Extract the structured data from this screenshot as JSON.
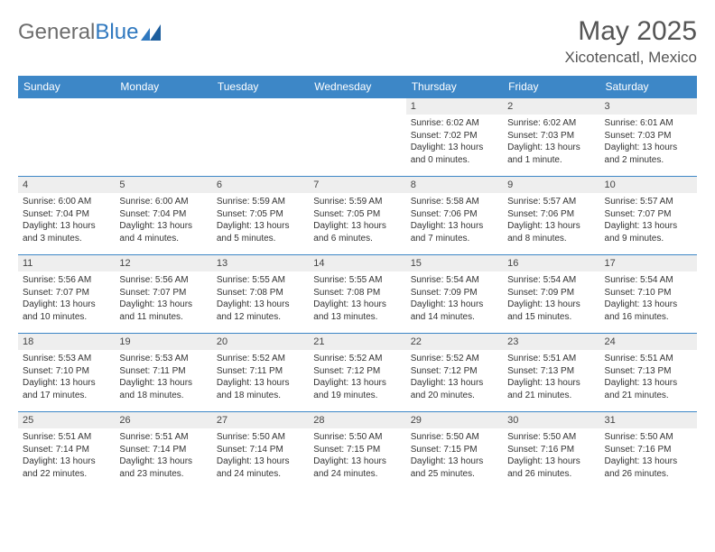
{
  "logo": {
    "word1": "General",
    "word2": "Blue"
  },
  "title": "May 2025",
  "location": "Xicotencatl, Mexico",
  "colors": {
    "header_bg": "#3d87c7",
    "header_text": "#ffffff",
    "border": "#3d87c7",
    "daynum_bg": "#eeeeee",
    "body_text": "#333333",
    "title_text": "#555555",
    "logo_gray": "#6d6d6d",
    "logo_blue": "#2f78bf"
  },
  "day_headers": [
    "Sunday",
    "Monday",
    "Tuesday",
    "Wednesday",
    "Thursday",
    "Friday",
    "Saturday"
  ],
  "weeks": [
    [
      {
        "n": "",
        "empty": true
      },
      {
        "n": "",
        "empty": true
      },
      {
        "n": "",
        "empty": true
      },
      {
        "n": "",
        "empty": true
      },
      {
        "n": "1",
        "sunrise": "Sunrise: 6:02 AM",
        "sunset": "Sunset: 7:02 PM",
        "daylight": "Daylight: 13 hours and 0 minutes."
      },
      {
        "n": "2",
        "sunrise": "Sunrise: 6:02 AM",
        "sunset": "Sunset: 7:03 PM",
        "daylight": "Daylight: 13 hours and 1 minute."
      },
      {
        "n": "3",
        "sunrise": "Sunrise: 6:01 AM",
        "sunset": "Sunset: 7:03 PM",
        "daylight": "Daylight: 13 hours and 2 minutes."
      }
    ],
    [
      {
        "n": "4",
        "sunrise": "Sunrise: 6:00 AM",
        "sunset": "Sunset: 7:04 PM",
        "daylight": "Daylight: 13 hours and 3 minutes."
      },
      {
        "n": "5",
        "sunrise": "Sunrise: 6:00 AM",
        "sunset": "Sunset: 7:04 PM",
        "daylight": "Daylight: 13 hours and 4 minutes."
      },
      {
        "n": "6",
        "sunrise": "Sunrise: 5:59 AM",
        "sunset": "Sunset: 7:05 PM",
        "daylight": "Daylight: 13 hours and 5 minutes."
      },
      {
        "n": "7",
        "sunrise": "Sunrise: 5:59 AM",
        "sunset": "Sunset: 7:05 PM",
        "daylight": "Daylight: 13 hours and 6 minutes."
      },
      {
        "n": "8",
        "sunrise": "Sunrise: 5:58 AM",
        "sunset": "Sunset: 7:06 PM",
        "daylight": "Daylight: 13 hours and 7 minutes."
      },
      {
        "n": "9",
        "sunrise": "Sunrise: 5:57 AM",
        "sunset": "Sunset: 7:06 PM",
        "daylight": "Daylight: 13 hours and 8 minutes."
      },
      {
        "n": "10",
        "sunrise": "Sunrise: 5:57 AM",
        "sunset": "Sunset: 7:07 PM",
        "daylight": "Daylight: 13 hours and 9 minutes."
      }
    ],
    [
      {
        "n": "11",
        "sunrise": "Sunrise: 5:56 AM",
        "sunset": "Sunset: 7:07 PM",
        "daylight": "Daylight: 13 hours and 10 minutes."
      },
      {
        "n": "12",
        "sunrise": "Sunrise: 5:56 AM",
        "sunset": "Sunset: 7:07 PM",
        "daylight": "Daylight: 13 hours and 11 minutes."
      },
      {
        "n": "13",
        "sunrise": "Sunrise: 5:55 AM",
        "sunset": "Sunset: 7:08 PM",
        "daylight": "Daylight: 13 hours and 12 minutes."
      },
      {
        "n": "14",
        "sunrise": "Sunrise: 5:55 AM",
        "sunset": "Sunset: 7:08 PM",
        "daylight": "Daylight: 13 hours and 13 minutes."
      },
      {
        "n": "15",
        "sunrise": "Sunrise: 5:54 AM",
        "sunset": "Sunset: 7:09 PM",
        "daylight": "Daylight: 13 hours and 14 minutes."
      },
      {
        "n": "16",
        "sunrise": "Sunrise: 5:54 AM",
        "sunset": "Sunset: 7:09 PM",
        "daylight": "Daylight: 13 hours and 15 minutes."
      },
      {
        "n": "17",
        "sunrise": "Sunrise: 5:54 AM",
        "sunset": "Sunset: 7:10 PM",
        "daylight": "Daylight: 13 hours and 16 minutes."
      }
    ],
    [
      {
        "n": "18",
        "sunrise": "Sunrise: 5:53 AM",
        "sunset": "Sunset: 7:10 PM",
        "daylight": "Daylight: 13 hours and 17 minutes."
      },
      {
        "n": "19",
        "sunrise": "Sunrise: 5:53 AM",
        "sunset": "Sunset: 7:11 PM",
        "daylight": "Daylight: 13 hours and 18 minutes."
      },
      {
        "n": "20",
        "sunrise": "Sunrise: 5:52 AM",
        "sunset": "Sunset: 7:11 PM",
        "daylight": "Daylight: 13 hours and 18 minutes."
      },
      {
        "n": "21",
        "sunrise": "Sunrise: 5:52 AM",
        "sunset": "Sunset: 7:12 PM",
        "daylight": "Daylight: 13 hours and 19 minutes."
      },
      {
        "n": "22",
        "sunrise": "Sunrise: 5:52 AM",
        "sunset": "Sunset: 7:12 PM",
        "daylight": "Daylight: 13 hours and 20 minutes."
      },
      {
        "n": "23",
        "sunrise": "Sunrise: 5:51 AM",
        "sunset": "Sunset: 7:13 PM",
        "daylight": "Daylight: 13 hours and 21 minutes."
      },
      {
        "n": "24",
        "sunrise": "Sunrise: 5:51 AM",
        "sunset": "Sunset: 7:13 PM",
        "daylight": "Daylight: 13 hours and 21 minutes."
      }
    ],
    [
      {
        "n": "25",
        "sunrise": "Sunrise: 5:51 AM",
        "sunset": "Sunset: 7:14 PM",
        "daylight": "Daylight: 13 hours and 22 minutes."
      },
      {
        "n": "26",
        "sunrise": "Sunrise: 5:51 AM",
        "sunset": "Sunset: 7:14 PM",
        "daylight": "Daylight: 13 hours and 23 minutes."
      },
      {
        "n": "27",
        "sunrise": "Sunrise: 5:50 AM",
        "sunset": "Sunset: 7:14 PM",
        "daylight": "Daylight: 13 hours and 24 minutes."
      },
      {
        "n": "28",
        "sunrise": "Sunrise: 5:50 AM",
        "sunset": "Sunset: 7:15 PM",
        "daylight": "Daylight: 13 hours and 24 minutes."
      },
      {
        "n": "29",
        "sunrise": "Sunrise: 5:50 AM",
        "sunset": "Sunset: 7:15 PM",
        "daylight": "Daylight: 13 hours and 25 minutes."
      },
      {
        "n": "30",
        "sunrise": "Sunrise: 5:50 AM",
        "sunset": "Sunset: 7:16 PM",
        "daylight": "Daylight: 13 hours and 26 minutes."
      },
      {
        "n": "31",
        "sunrise": "Sunrise: 5:50 AM",
        "sunset": "Sunset: 7:16 PM",
        "daylight": "Daylight: 13 hours and 26 minutes."
      }
    ]
  ]
}
